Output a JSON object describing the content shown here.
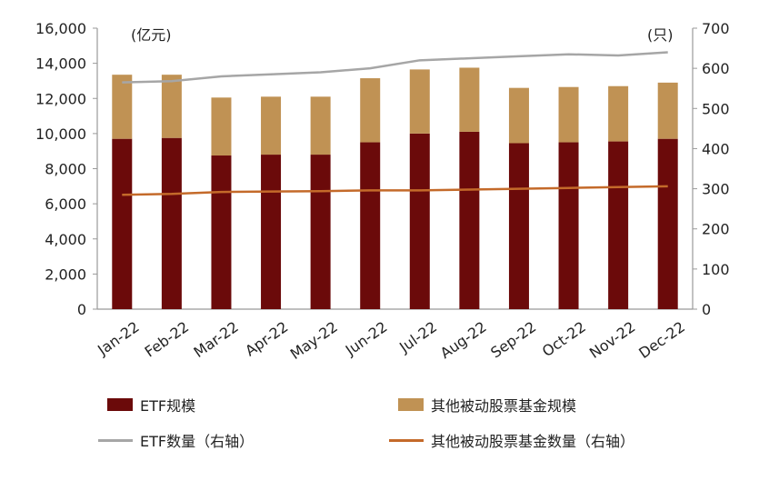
{
  "chart_data": {
    "type": "bar",
    "categories": [
      "Jan-22",
      "Feb-22",
      "Mar-22",
      "Apr-22",
      "May-22",
      "Jun-22",
      "Jul-22",
      "Aug-22",
      "Sep-22",
      "Oct-22",
      "Nov-22",
      "Dec-22"
    ],
    "left_axis": {
      "unit": "(亿元)",
      "ylim": [
        0,
        16000
      ],
      "ticks": [
        "0",
        "2,000",
        "4,000",
        "6,000",
        "8,000",
        "10,000",
        "12,000",
        "14,000",
        "16,000"
      ]
    },
    "right_axis": {
      "unit": "(只)",
      "ylim": [
        0,
        700
      ],
      "ticks": [
        "0",
        "100",
        "200",
        "300",
        "400",
        "500",
        "600",
        "700"
      ]
    },
    "stacked_bars": [
      {
        "name": "ETF规模",
        "color": "#6b0a0a",
        "values": [
          9700,
          9750,
          8750,
          8800,
          8800,
          9500,
          10000,
          10100,
          9450,
          9500,
          9550,
          9700
        ]
      },
      {
        "name": "其他被动股票基金规模",
        "color": "#c09254",
        "values": [
          3650,
          3600,
          3300,
          3300,
          3300,
          3650,
          3650,
          3650,
          3150,
          3150,
          3150,
          3200
        ]
      }
    ],
    "lines": [
      {
        "name": "ETF数量（右轴）",
        "color": "#a6a6a6",
        "axis": "right",
        "values": [
          565,
          568,
          580,
          585,
          590,
          600,
          620,
          625,
          630,
          635,
          632,
          640
        ]
      },
      {
        "name": "其他被动股票基金数量（右轴）",
        "color": "#c46a2a",
        "axis": "right",
        "values": [
          285,
          287,
          292,
          293,
          294,
          296,
          296,
          298,
          300,
          302,
          304,
          306
        ]
      }
    ],
    "grid": false,
    "legend_position": "bottom"
  },
  "legend": {
    "etf_size": "ETF规模",
    "other_size": "其他被动股票基金规模",
    "etf_count": "ETF数量（右轴）",
    "other_count": "其他被动股票基金数量（右轴）"
  }
}
